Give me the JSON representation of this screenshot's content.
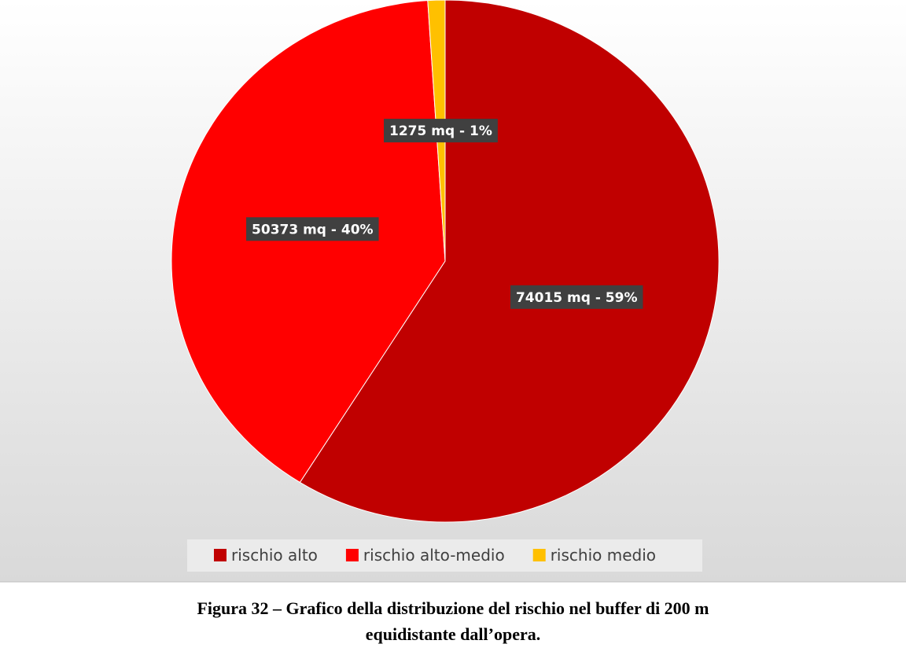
{
  "chart_data": {
    "type": "pie",
    "categories": [
      "rischio alto",
      "rischio alto-medio",
      "rischio medio"
    ],
    "values": [
      74015,
      50373,
      1275
    ],
    "value_labels": [
      "74015 mq - 59%",
      "50373 mq - 40%",
      "1275 mq - 1%"
    ],
    "colors": [
      "#c00000",
      "#ff0000",
      "#ffc000"
    ],
    "legend": "bottom",
    "caption": [
      "Figura 32 – Grafico della distribuzione del rischio nel buffer di 200 m",
      "equidistante dall’opera."
    ]
  }
}
